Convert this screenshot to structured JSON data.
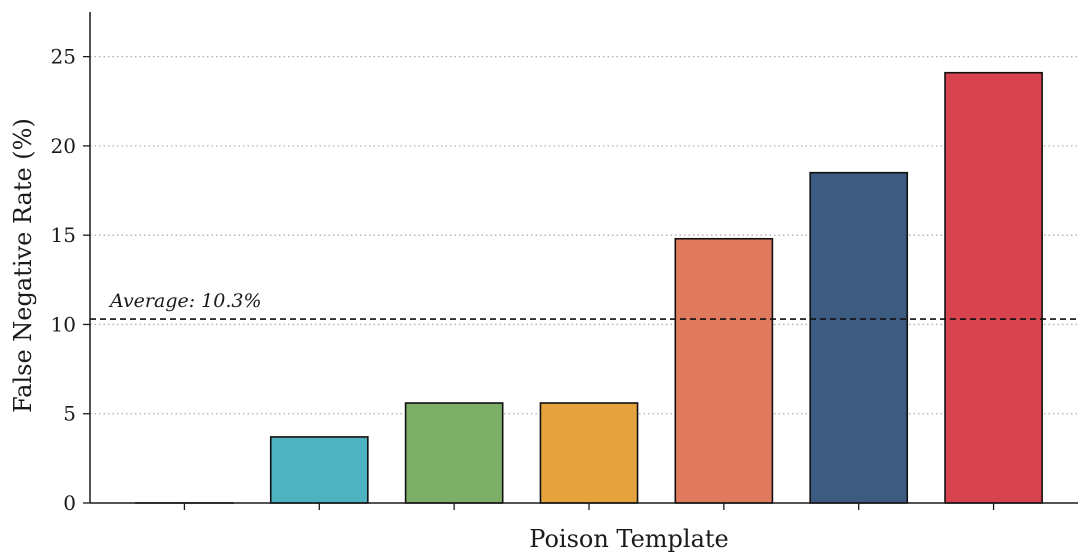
{
  "chart_data": {
    "type": "bar",
    "categories": [
      "",
      "",
      "",
      "",
      "",
      "",
      ""
    ],
    "values": [
      0.0,
      3.7,
      5.6,
      5.6,
      14.8,
      18.5,
      24.1
    ],
    "colors": [
      "#4eb3c1",
      "#4eb3c1",
      "#7eaf69",
      "#e6a23c",
      "#e07a5f",
      "#3d5a80",
      "#d7444f"
    ],
    "bar_edge_color": "#111111",
    "xlabel": "Poison Template",
    "ylabel": "False Negative Rate (%)",
    "ylim": [
      0,
      27.5
    ],
    "yticks": [
      0,
      5,
      10,
      15,
      20,
      25
    ],
    "grid": "y-dotted",
    "average": {
      "value": 10.3,
      "label": "Average: 10.3%",
      "style": "dashed"
    }
  }
}
